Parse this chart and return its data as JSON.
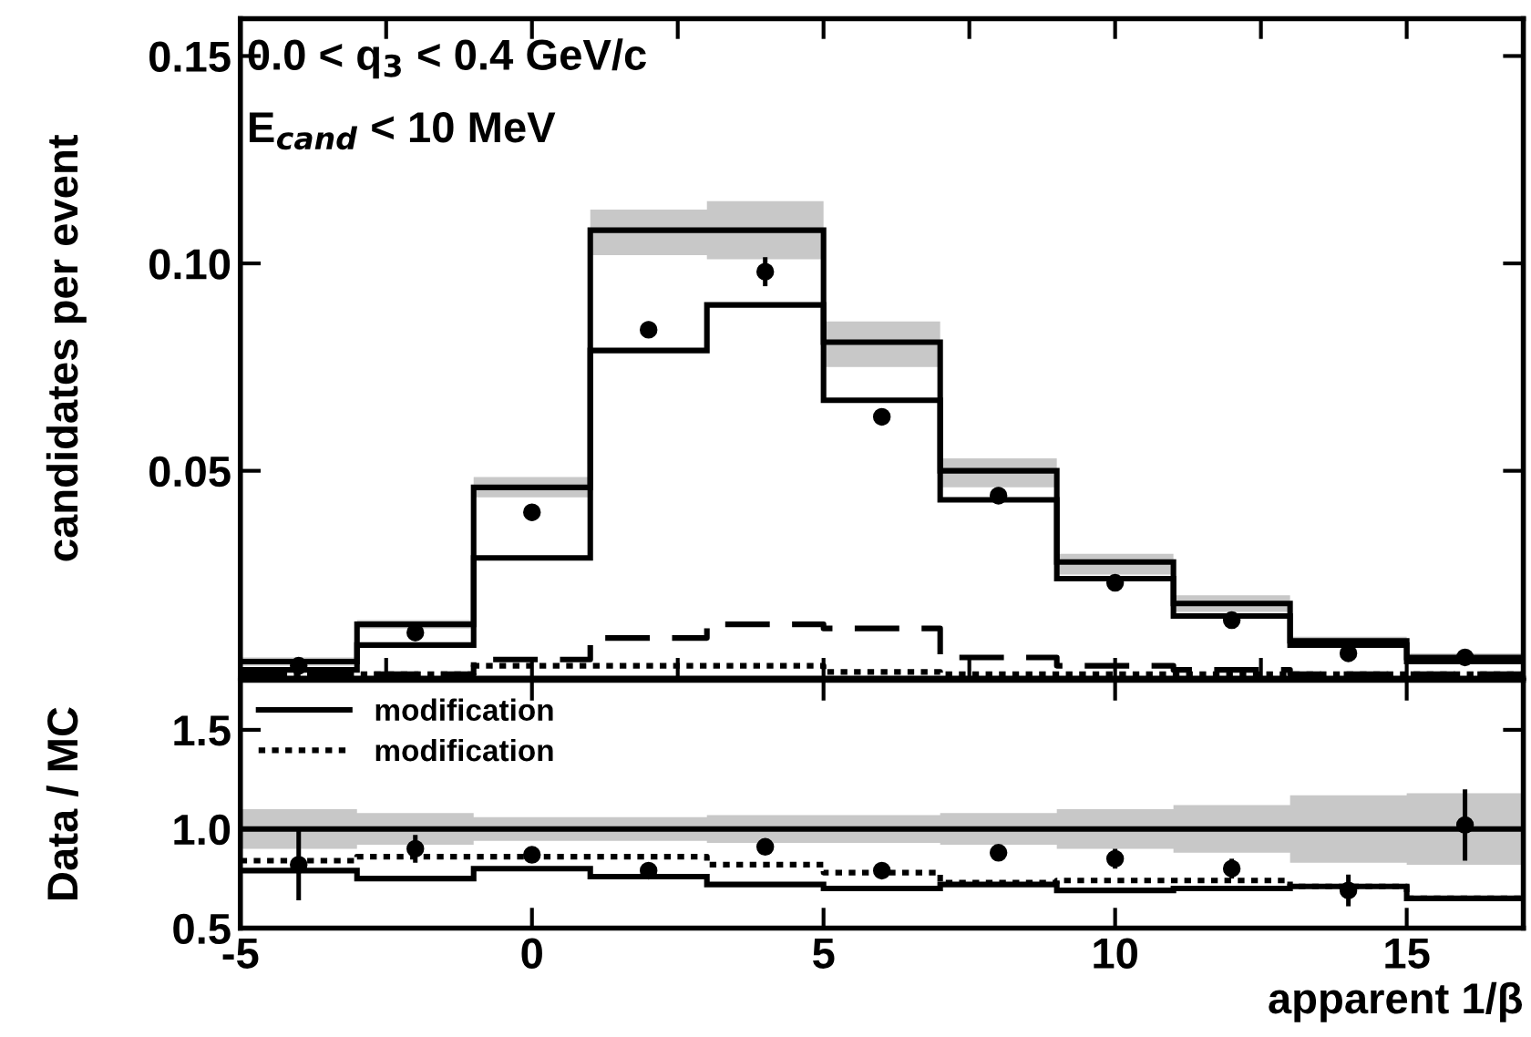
{
  "chart_data": [
    {
      "type": "step",
      "ylabel": "candidates per event",
      "annotations": [
        "0.0 < q$_{3}$ < 0.4 GeV/c",
        "E$_{cand}$ < 10 MeV"
      ],
      "x": [
        -5,
        -3,
        -1,
        1,
        3,
        5,
        7,
        9,
        11,
        13,
        15,
        17
      ],
      "xlim": [
        -5,
        17
      ],
      "ylim": [
        0,
        0.159
      ],
      "yticks": [
        {
          "value": 0.05,
          "label": "0.05"
        },
        {
          "value": 0.1,
          "label": "0.10"
        },
        {
          "value": 0.15,
          "label": "0.15"
        }
      ],
      "tick_labels": "y",
      "grid": false,
      "legend": false,
      "series": [
        {
          "color": "#000000",
          "line_style": "solid",
          "values": [
            0.004,
            0.013,
            0.046,
            0.108,
            0.108,
            0.081,
            0.05,
            0.028,
            0.018,
            0.009,
            0.005,
            0.005
          ],
          "lower": [
            0.003,
            0.012,
            0.0436,
            0.102,
            0.101,
            0.075,
            0.046,
            0.025,
            0.016,
            0.008,
            0.004,
            0.004
          ],
          "upper": [
            0.005,
            0.014,
            0.0485,
            0.113,
            0.115,
            0.086,
            0.053,
            0.03,
            0.02,
            0.01,
            0.006,
            0.006
          ]
        },
        {
          "color": "#000000",
          "line_style": "solid",
          "values": [
            0.002,
            0.008,
            0.029,
            0.079,
            0.09,
            0.067,
            0.043,
            0.024,
            0.015,
            0.008,
            0.004,
            0.004
          ]
        },
        {
          "color": "#000000",
          "line_style": "dashed",
          "values": [
            0.001,
            0.001,
            0.0045,
            0.0097,
            0.013,
            0.012,
            0.005,
            0.003,
            0.002,
            0.001,
            0.001,
            0.001
          ]
        },
        {
          "color": "#000000",
          "line_style": "dotted",
          "values": [
            0.001,
            0.001,
            0.003,
            0.003,
            0.003,
            0.0015,
            0.001,
            0.001,
            0.001,
            0.001,
            0.001,
            0.001
          ]
        },
        {
          "type": "scatter",
          "color": "#000000",
          "marker": "circle",
          "x": [
            -4,
            -2,
            0,
            2,
            4,
            6,
            8,
            10,
            12,
            14,
            16
          ],
          "values": [
            0.003,
            0.011,
            0.04,
            0.084,
            0.098,
            0.063,
            0.044,
            0.023,
            0.014,
            0.006,
            0.005
          ],
          "errors": [
            0.001,
            0.001,
            0.002,
            0.002,
            0.0035,
            0.002,
            0.002,
            0.001,
            0.001,
            0.001,
            0.001
          ]
        }
      ]
    },
    {
      "type": "step",
      "xlabel": "apparent 1/β",
      "ylabel": "Data / MC",
      "x": [
        -5,
        -3,
        -1,
        1,
        3,
        5,
        7,
        9,
        11,
        13,
        15,
        17
      ],
      "xlim": [
        -5,
        17
      ],
      "ylim": [
        0.5,
        1.75
      ],
      "xticks": [
        -5,
        0,
        5,
        10,
        15
      ],
      "yticks": [
        {
          "value": 0.5,
          "label": "0.5"
        },
        {
          "value": 1.0,
          "label": "1.0"
        },
        {
          "value": 1.5,
          "label": "1.5"
        }
      ],
      "grid": false,
      "legend": "top left",
      "series": [
        {
          "color": "#000000",
          "line_style": "solid",
          "values": [
            1,
            1,
            1,
            1,
            1,
            1,
            1,
            1,
            1,
            1,
            1,
            1
          ],
          "lower": [
            0.9,
            0.92,
            0.94,
            0.94,
            0.93,
            0.93,
            0.92,
            0.9,
            0.88,
            0.83,
            0.82,
            0.82
          ],
          "upper": [
            1.1,
            1.08,
            1.06,
            1.06,
            1.07,
            1.07,
            1.08,
            1.1,
            1.12,
            1.17,
            1.18,
            1.18
          ]
        },
        {
          "name": "modification",
          "color": "#000000",
          "line_style": "solid",
          "values": [
            0.79,
            0.75,
            0.8,
            0.76,
            0.72,
            0.7,
            0.72,
            0.69,
            0.7,
            0.71,
            0.65,
            0.65
          ]
        },
        {
          "name": "modification",
          "color": "#000000",
          "line_style": "dotted",
          "values": [
            0.84,
            0.86,
            0.86,
            0.86,
            0.82,
            0.78,
            0.73,
            0.74,
            0.74,
            0.71,
            0.65,
            0.65
          ]
        },
        {
          "type": "scatter",
          "color": "#000000",
          "marker": "circle",
          "x": [
            -4,
            -2,
            0,
            2,
            4,
            6,
            8,
            10,
            12,
            14,
            16
          ],
          "values": [
            0.82,
            0.9,
            0.87,
            0.79,
            0.91,
            0.79,
            0.88,
            0.85,
            0.8,
            0.69,
            1.02
          ],
          "errors": [
            0.18,
            0.07,
            0.03,
            0.02,
            0.02,
            0.02,
            0.03,
            0.05,
            0.05,
            0.08,
            0.18
          ]
        }
      ]
    }
  ]
}
